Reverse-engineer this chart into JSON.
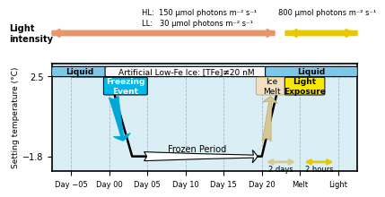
{
  "ylabel": "Setting temperature (°C)",
  "xlabel_labels": [
    "Day −05",
    "Day 00",
    "Day 05",
    "Day 10",
    "Day 15",
    "Day 20",
    "Melt",
    "Light"
  ],
  "ytick_vals": [
    2.5,
    -1.8
  ],
  "ytick_labels": [
    "2.5",
    "−1.8"
  ],
  "hl_text": "HL:  150 μmol photons m⁻² s⁻¹",
  "ll_text": "LL:   30 μmol photons m⁻² s⁻¹",
  "high_light_text": "800 μmol photons m⁻² s⁻¹",
  "light_intensity_label": "Light\nintensity",
  "liquid_text": "Liquid",
  "ice_text": "Artificial Low-Fe Ice: [TFe]≢20 nM",
  "freezing_text": "Freezing\nEvent",
  "frozen_text": "Frozen Period",
  "ice_melt_text": "Ice\nMelt",
  "light_exp_text": "Light\nExposure",
  "days_text": "2 days",
  "hours_text": "2 hours",
  "bg_color": "#daeef6",
  "main_arrow_color": "#e8956d",
  "yellow_arrow_color": "#e8c800",
  "blue_arrow_color": "#00a8d8",
  "tan_arrow_color": "#d8c890",
  "liquid_box_color": "#7dc8e8",
  "ice_box_color": "#f8f8f8",
  "freezing_box_color": "#00b8e8",
  "ice_melt_box_color": "#f0e0c0",
  "light_exp_box_color": "#f8e800",
  "profile_x": [
    0,
    1,
    1.6,
    5,
    5.5,
    6
  ],
  "profile_y": [
    2.5,
    2.5,
    -1.8,
    -1.8,
    2.5,
    2.5
  ]
}
